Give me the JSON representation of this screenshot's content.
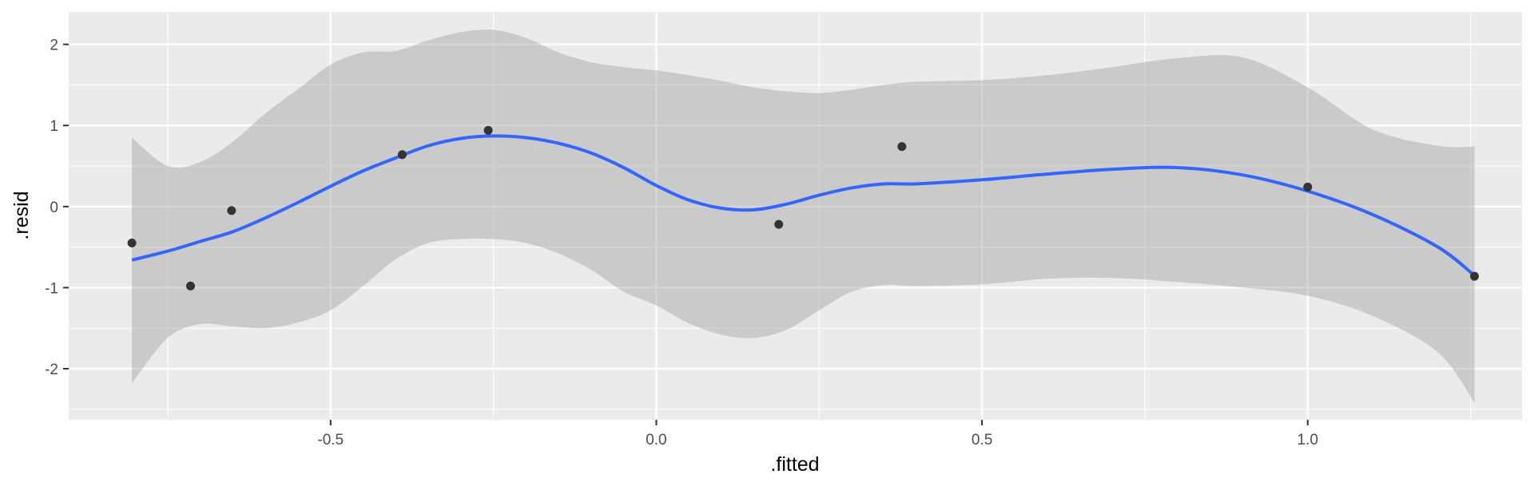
{
  "chart_data": {
    "type": "scatter",
    "xlabel": ".fitted",
    "ylabel": ".resid",
    "xlim": [
      -0.902,
      1.329
    ],
    "ylim": [
      -2.63,
      2.4
    ],
    "x_ticks": [
      -0.5,
      0.0,
      0.5,
      1.0
    ],
    "x_tick_labels": [
      "-0.5",
      "0.0",
      "0.5",
      "1.0"
    ],
    "y_ticks": [
      -2,
      -1,
      0,
      1,
      2
    ],
    "y_tick_labels": [
      "-2",
      "-1",
      "0",
      "1",
      "2"
    ],
    "grid": true,
    "points": [
      {
        "x": -0.805,
        "y": -0.45
      },
      {
        "x": -0.715,
        "y": -0.98
      },
      {
        "x": -0.652,
        "y": -0.05
      },
      {
        "x": -0.39,
        "y": 0.64
      },
      {
        "x": -0.258,
        "y": 0.94
      },
      {
        "x": 0.188,
        "y": -0.22
      },
      {
        "x": 0.377,
        "y": 0.74
      },
      {
        "x": 1.0,
        "y": 0.24
      },
      {
        "x": 1.256,
        "y": -0.86
      }
    ],
    "smooth": {
      "x": [
        -0.805,
        -0.75,
        -0.7,
        -0.65,
        -0.6,
        -0.55,
        -0.5,
        -0.45,
        -0.4,
        -0.35,
        -0.3,
        -0.25,
        -0.2,
        -0.15,
        -0.1,
        -0.05,
        0.0,
        0.05,
        0.1,
        0.15,
        0.2,
        0.25,
        0.3,
        0.35,
        0.4,
        0.5,
        0.6,
        0.7,
        0.8,
        0.9,
        1.0,
        1.1,
        1.2,
        1.256
      ],
      "y": [
        -0.66,
        -0.55,
        -0.43,
        -0.31,
        -0.14,
        0.05,
        0.25,
        0.44,
        0.6,
        0.75,
        0.84,
        0.87,
        0.85,
        0.78,
        0.66,
        0.48,
        0.26,
        0.08,
        -0.02,
        -0.04,
        0.03,
        0.14,
        0.23,
        0.28,
        0.28,
        0.33,
        0.4,
        0.46,
        0.48,
        0.39,
        0.19,
        -0.1,
        -0.5,
        -0.85
      ],
      "upper": [
        0.85,
        0.5,
        0.55,
        0.8,
        1.15,
        1.45,
        1.75,
        1.9,
        1.92,
        2.05,
        2.15,
        2.18,
        2.08,
        1.9,
        1.78,
        1.72,
        1.68,
        1.62,
        1.55,
        1.47,
        1.42,
        1.4,
        1.44,
        1.5,
        1.54,
        1.56,
        1.62,
        1.72,
        1.83,
        1.84,
        1.47,
        0.95,
        0.75,
        0.74
      ],
      "lower": [
        -2.18,
        -1.62,
        -1.45,
        -1.48,
        -1.5,
        -1.43,
        -1.28,
        -0.98,
        -0.65,
        -0.45,
        -0.4,
        -0.4,
        -0.45,
        -0.58,
        -0.78,
        -1.05,
        -1.22,
        -1.44,
        -1.58,
        -1.62,
        -1.52,
        -1.28,
        -1.05,
        -0.97,
        -0.98,
        -0.96,
        -0.89,
        -0.88,
        -0.93,
        -1.0,
        -1.1,
        -1.35,
        -1.8,
        -2.42
      ]
    },
    "colors": {
      "panel": "#ebebeb",
      "grid_major": "#ffffff",
      "point": "#333333",
      "line": "#3366ff",
      "band": "#999999"
    }
  }
}
